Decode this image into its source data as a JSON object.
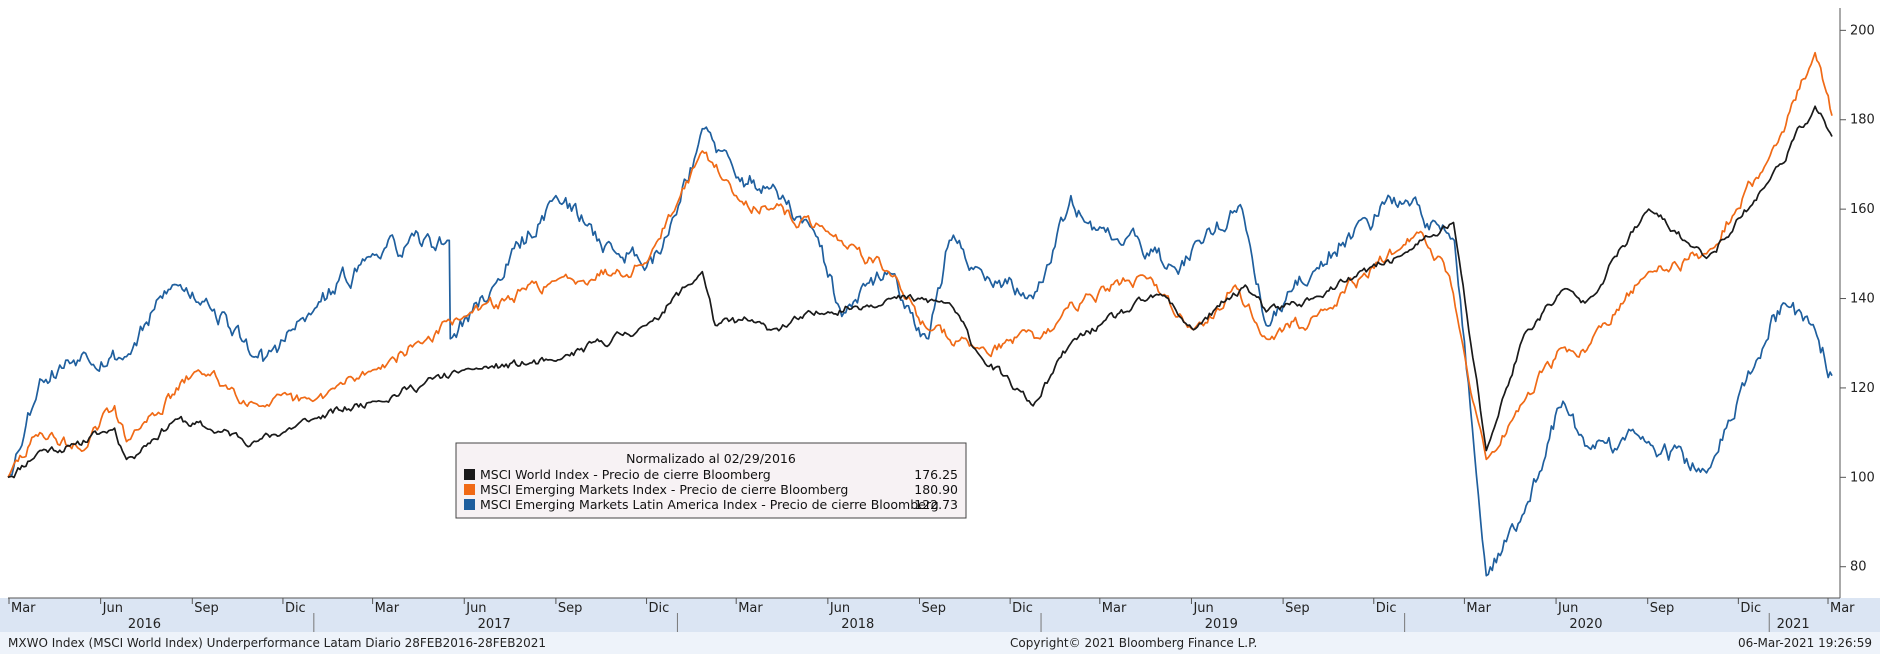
{
  "chart_data": {
    "type": "line",
    "legend": {
      "title": "Normalizado al 02/29/2016",
      "placement": "bottom-left-center"
    },
    "ylim": [
      73,
      205
    ],
    "y_ticks": [
      "80",
      "100",
      "120",
      "140",
      "160",
      "180",
      "200"
    ],
    "y_tick_values": [
      80,
      100,
      120,
      140,
      160,
      180,
      200
    ],
    "x_start": "2016-02-29",
    "x_end": "2021-03-05",
    "month_ticks": [
      {
        "label": "Mar",
        "date": "2016-03-01"
      },
      {
        "label": "Jun",
        "date": "2016-06-01"
      },
      {
        "label": "Sep",
        "date": "2016-09-01"
      },
      {
        "label": "Dic",
        "date": "2016-12-01"
      },
      {
        "label": "Mar",
        "date": "2017-03-01"
      },
      {
        "label": "Jun",
        "date": "2017-06-01"
      },
      {
        "label": "Sep",
        "date": "2017-09-01"
      },
      {
        "label": "Dic",
        "date": "2017-12-01"
      },
      {
        "label": "Mar",
        "date": "2018-03-01"
      },
      {
        "label": "Jun",
        "date": "2018-06-01"
      },
      {
        "label": "Sep",
        "date": "2018-09-01"
      },
      {
        "label": "Dic",
        "date": "2018-12-01"
      },
      {
        "label": "Mar",
        "date": "2019-03-01"
      },
      {
        "label": "Jun",
        "date": "2019-06-01"
      },
      {
        "label": "Sep",
        "date": "2019-09-01"
      },
      {
        "label": "Dic",
        "date": "2019-12-01"
      },
      {
        "label": "Mar",
        "date": "2020-03-01"
      },
      {
        "label": "Jun",
        "date": "2020-06-01"
      },
      {
        "label": "Sep",
        "date": "2020-09-01"
      },
      {
        "label": "Dic",
        "date": "2020-12-01"
      },
      {
        "label": "Mar",
        "date": "2021-03-01"
      }
    ],
    "year_ticks": [
      {
        "label": "2016",
        "date": "2016-07-15"
      },
      {
        "label": "2017",
        "date": "2017-07-01"
      },
      {
        "label": "2018",
        "date": "2018-07-01"
      },
      {
        "label": "2019",
        "date": "2019-07-01"
      },
      {
        "label": "2020",
        "date": "2020-07-01"
      },
      {
        "label": "2021",
        "date": "2021-01-25"
      }
    ],
    "series": [
      {
        "name": "MSCI World Index - Precio de cierre Bloomberg",
        "last_value": "176.25",
        "color": "#1a1a1a",
        "x": [
          "2016-02-29",
          "2016-04-01",
          "2016-05-01",
          "2016-06-15",
          "2016-06-27",
          "2016-08-15",
          "2016-09-15",
          "2016-11-04",
          "2016-12-31",
          "2017-03-01",
          "2017-06-01",
          "2017-09-01",
          "2017-12-01",
          "2018-01-26",
          "2018-02-08",
          "2018-03-15",
          "2018-04-01",
          "2018-06-01",
          "2018-08-01",
          "2018-10-01",
          "2018-10-29",
          "2018-12-24",
          "2019-01-31",
          "2019-03-01",
          "2019-05-01",
          "2019-06-03",
          "2019-07-25",
          "2019-08-15",
          "2019-10-01",
          "2019-12-31",
          "2020-02-19",
          "2020-03-23",
          "2020-04-30",
          "2020-06-08",
          "2020-06-30",
          "2020-09-02",
          "2020-10-30",
          "2020-12-31",
          "2021-02-16",
          "2021-03-05"
        ],
        "y": [
          100,
          106,
          107,
          111,
          104,
          113,
          111,
          108,
          113,
          117,
          124,
          126,
          134,
          146,
          134,
          135,
          133,
          137,
          140,
          139,
          128,
          116,
          130,
          134,
          141,
          133,
          143,
          137,
          140,
          150,
          157,
          106,
          132,
          142,
          139,
          160,
          149,
          166,
          183,
          176.25
        ]
      },
      {
        "name": "MSCI Emerging Markets Index - Precio de cierre Bloomberg",
        "last_value": "180.90",
        "color": "#f06a16",
        "x": [
          "2016-02-29",
          "2016-04-01",
          "2016-05-15",
          "2016-06-15",
          "2016-06-27",
          "2016-09-07",
          "2016-11-11",
          "2016-12-31",
          "2017-03-01",
          "2017-06-01",
          "2017-09-01",
          "2017-12-01",
          "2018-01-26",
          "2018-03-01",
          "2018-04-01",
          "2018-06-01",
          "2018-08-01",
          "2018-09-10",
          "2018-10-29",
          "2018-12-31",
          "2019-02-15",
          "2019-04-15",
          "2019-06-03",
          "2019-07-15",
          "2019-08-15",
          "2019-10-01",
          "2019-12-31",
          "2020-01-17",
          "2020-02-15",
          "2020-03-23",
          "2020-04-30",
          "2020-06-08",
          "2020-06-30",
          "2020-09-02",
          "2020-10-30",
          "2020-12-31",
          "2021-02-16",
          "2021-03-05"
        ],
        "y": [
          100,
          110,
          106,
          116,
          108,
          124,
          116,
          117,
          124,
          136,
          144,
          148,
          173,
          163,
          160,
          155,
          146,
          133,
          129,
          131,
          141,
          145,
          133,
          143,
          131,
          136,
          152,
          155,
          145,
          104,
          117,
          129,
          128,
          146,
          150,
          171,
          195,
          180.9
        ]
      },
      {
        "name": "MSCI Emerging Markets Latin America Index - Precio de cierre Bloomberg",
        "last_value": "122.73",
        "color": "#1f5f9e",
        "x": [
          "2016-02-29",
          "2016-04-01",
          "2016-05-15",
          "2016-06-27",
          "2016-08-12",
          "2016-09-15",
          "2016-11-04",
          "2016-11-11",
          "2016-12-31",
          "2017-03-01",
          "2017-05-17",
          "2017-05-18",
          "2017-07-01",
          "2017-09-01",
          "2017-11-01",
          "2017-12-15",
          "2018-01-26",
          "2018-03-01",
          "2018-04-01",
          "2018-05-20",
          "2018-06-15",
          "2018-08-01",
          "2018-09-10",
          "2018-10-01",
          "2018-10-29",
          "2018-12-24",
          "2019-01-31",
          "2019-03-01",
          "2019-05-15",
          "2019-06-03",
          "2019-07-20",
          "2019-08-15",
          "2019-10-01",
          "2019-11-20",
          "2020-01-02",
          "2020-02-20",
          "2020-03-23",
          "2020-04-30",
          "2020-06-08",
          "2020-06-30",
          "2020-09-02",
          "2020-10-30",
          "2020-12-31",
          "2021-01-15",
          "2021-02-16",
          "2021-03-05"
        ],
        "y": [
          100,
          122,
          128,
          127,
          143,
          140,
          127,
          126,
          137,
          150,
          153,
          131,
          143,
          163,
          150,
          150,
          178,
          167,
          165,
          154,
          136,
          146,
          131,
          153,
          147,
          140,
          163,
          156,
          147,
          152,
          161,
          134,
          146,
          158,
          162,
          153,
          78,
          92,
          117,
          107,
          108,
          101,
          131,
          139,
          133,
          122.73
        ]
      }
    ]
  },
  "footer": {
    "left": "MXWO Index (MSCI World Index) Underperformance Latam  Diario 28FEB2016-28FEB2021",
    "center": "Copyright© 2021 Bloomberg Finance L.P.",
    "right": "06-Mar-2021 19:26:59"
  },
  "colors": {
    "axis_band": "#dbe5f3",
    "footer_band": "#eef3fa",
    "legend_bg": "#f7f2f4"
  }
}
